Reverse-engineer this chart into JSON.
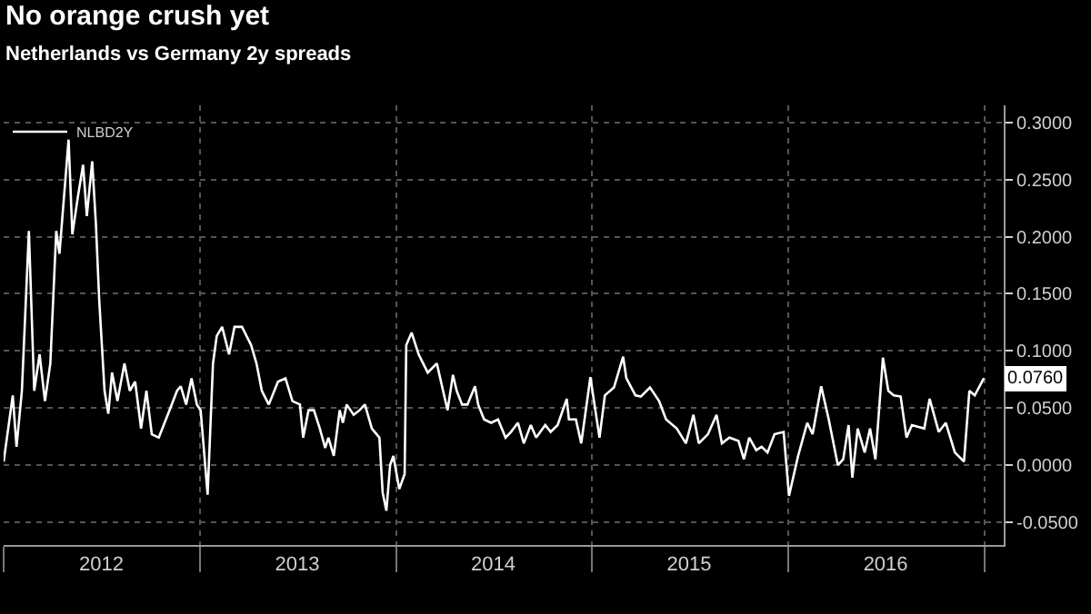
{
  "chart_data": {
    "type": "line",
    "title": "No orange crush yet",
    "subtitle": "Netherlands vs Germany 2y spreads",
    "x": [
      "2012-01-01",
      "2012-01-18",
      "2012-01-25",
      "2012-02-04",
      "2012-02-17",
      "2012-02-27",
      "2012-03-08",
      "2012-03-18",
      "2012-03-28",
      "2012-04-08",
      "2012-04-14",
      "2012-05-01",
      "2012-05-08",
      "2012-05-18",
      "2012-05-28",
      "2012-06-04",
      "2012-06-14",
      "2012-06-21",
      "2012-06-27",
      "2012-07-07",
      "2012-07-14",
      "2012-07-21",
      "2012-07-31",
      "2012-08-13",
      "2012-08-23",
      "2012-09-02",
      "2012-09-13",
      "2012-09-23",
      "2012-10-03",
      "2012-10-16",
      "2012-11-05",
      "2012-11-19",
      "2012-11-26",
      "2012-12-06",
      "2012-12-16",
      "2012-12-26",
      "2013-01-02",
      "2013-01-15",
      "2013-01-25",
      "2013-02-01",
      "2013-02-11",
      "2013-02-24",
      "2013-03-06",
      "2013-03-20",
      "2013-04-06",
      "2013-04-16",
      "2013-04-26",
      "2013-05-09",
      "2013-05-26",
      "2013-06-09",
      "2013-06-22",
      "2013-07-06",
      "2013-07-12",
      "2013-07-22",
      "2013-08-01",
      "2013-08-12",
      "2013-08-22",
      "2013-08-28",
      "2013-09-07",
      "2013-09-18",
      "2013-09-24",
      "2013-10-01",
      "2013-10-14",
      "2013-10-25",
      "2013-11-04",
      "2013-11-17",
      "2013-12-01",
      "2013-12-07",
      "2013-12-14",
      "2013-12-21",
      "2013-12-27",
      "2014-01-07",
      "2014-01-17",
      "2014-01-20",
      "2014-01-30",
      "2014-02-12",
      "2014-03-01",
      "2014-03-18",
      "2014-04-01",
      "2014-04-07",
      "2014-04-17",
      "2014-04-24",
      "2014-05-04",
      "2014-05-14",
      "2014-05-28",
      "2014-06-03",
      "2014-06-14",
      "2014-06-27",
      "2014-07-10",
      "2014-07-24",
      "2014-08-03",
      "2014-08-16",
      "2014-08-27",
      "2014-09-09",
      "2014-09-19",
      "2014-10-06",
      "2014-10-16",
      "2014-10-29",
      "2014-11-15",
      "2014-11-19",
      "2014-12-02",
      "2014-12-12",
      "2014-12-29",
      "2015-01-15",
      "2015-01-25",
      "2015-02-11",
      "2015-02-28",
      "2015-03-06",
      "2015-03-23",
      "2015-04-02",
      "2015-04-19",
      "2015-05-06",
      "2015-05-19",
      "2015-06-08",
      "2015-06-25",
      "2015-07-09",
      "2015-07-19",
      "2015-08-05",
      "2015-08-21",
      "2015-08-31",
      "2015-09-14",
      "2015-10-01",
      "2015-10-11",
      "2015-10-21",
      "2015-11-03",
      "2015-11-13",
      "2015-11-24",
      "2015-12-07",
      "2015-12-24",
      "2016-01-03",
      "2016-01-20",
      "2016-02-06",
      "2016-02-16",
      "2016-03-03",
      "2016-03-17",
      "2016-04-03",
      "2016-04-13",
      "2016-04-23",
      "2016-04-30",
      "2016-05-10",
      "2016-05-23",
      "2016-06-02",
      "2016-06-12",
      "2016-06-26",
      "2016-07-06",
      "2016-07-16",
      "2016-07-29",
      "2016-08-09",
      "2016-08-19",
      "2016-09-11",
      "2016-09-21",
      "2016-10-08",
      "2016-10-21",
      "2016-11-07",
      "2016-11-24",
      "2016-12-04",
      "2016-12-14",
      "2016-12-31"
    ],
    "series": [
      {
        "name": "NLBD2Y",
        "color": "#ffffff",
        "values": [
          0.003,
          0.061,
          0.016,
          0.065,
          0.205,
          0.065,
          0.097,
          0.056,
          0.089,
          0.205,
          0.185,
          0.285,
          0.202,
          0.234,
          0.263,
          0.218,
          0.266,
          0.21,
          0.145,
          0.065,
          0.045,
          0.081,
          0.056,
          0.089,
          0.065,
          0.073,
          0.032,
          0.065,
          0.027,
          0.024,
          0.048,
          0.065,
          0.069,
          0.053,
          0.076,
          0.053,
          0.048,
          -0.026,
          0.089,
          0.113,
          0.121,
          0.097,
          0.121,
          0.121,
          0.105,
          0.089,
          0.065,
          0.053,
          0.073,
          0.076,
          0.056,
          0.053,
          0.024,
          0.048,
          0.048,
          0.032,
          0.015,
          0.024,
          0.008,
          0.048,
          0.037,
          0.053,
          0.044,
          0.048,
          0.053,
          0.032,
          0.024,
          -0.024,
          -0.04,
          0.0,
          0.008,
          -0.021,
          -0.008,
          0.105,
          0.116,
          0.097,
          0.081,
          0.089,
          0.06,
          0.048,
          0.079,
          0.065,
          0.053,
          0.053,
          0.069,
          0.053,
          0.04,
          0.037,
          0.04,
          0.024,
          0.029,
          0.037,
          0.019,
          0.035,
          0.024,
          0.035,
          0.029,
          0.035,
          0.058,
          0.04,
          0.04,
          0.019,
          0.077,
          0.024,
          0.061,
          0.068,
          0.095,
          0.076,
          0.061,
          0.06,
          0.068,
          0.056,
          0.04,
          0.032,
          0.019,
          0.044,
          0.019,
          0.027,
          0.044,
          0.019,
          0.024,
          0.021,
          0.005,
          0.024,
          0.013,
          0.016,
          0.011,
          0.027,
          0.029,
          -0.027,
          0.008,
          0.037,
          0.027,
          0.069,
          0.04,
          0.0,
          0.005,
          0.035,
          -0.011,
          0.032,
          0.011,
          0.032,
          0.005,
          0.094,
          0.065,
          0.061,
          0.06,
          0.024,
          0.035,
          0.032,
          0.058,
          0.029,
          0.037,
          0.011,
          0.003,
          0.065,
          0.061,
          0.076
        ],
        "value_labels": [
          null,
          null,
          null,
          null,
          null,
          null,
          null,
          null,
          null,
          null,
          null,
          null,
          null,
          null,
          null,
          null,
          null,
          null,
          null,
          null,
          null,
          null,
          null,
          null,
          null,
          null,
          null,
          null,
          null,
          null,
          null,
          null,
          null,
          null,
          null,
          null,
          null,
          null,
          null,
          null,
          null,
          null,
          null,
          null,
          null,
          null,
          null,
          null,
          null,
          null,
          null,
          null,
          null,
          null,
          null,
          null,
          null,
          null,
          null,
          null,
          null,
          null,
          null,
          null,
          null,
          null,
          null,
          null,
          null,
          null,
          null,
          null,
          null,
          null,
          null,
          null,
          null,
          null,
          null,
          null,
          null,
          null,
          null,
          null,
          null,
          null,
          null,
          null,
          null,
          null,
          null,
          null,
          null,
          null,
          null,
          null,
          null,
          null,
          null,
          null,
          null,
          null,
          null,
          null,
          null,
          null,
          null,
          null,
          null,
          null,
          null,
          null,
          null,
          null,
          null,
          null,
          null,
          null,
          null,
          null,
          null,
          null,
          null,
          null,
          null,
          null,
          null,
          null,
          null,
          null,
          null,
          null,
          null,
          null,
          null,
          null,
          null,
          null,
          null,
          null,
          null,
          null,
          null,
          null,
          null,
          null,
          null,
          null,
          null,
          null,
          null,
          null,
          null,
          null,
          null,
          null,
          null,
          "0.0760"
        ]
      }
    ],
    "xlim": [
      "2012-01-01",
      "2017-02-06"
    ],
    "xticks": [
      {
        "value": "2012-01-01",
        "label": null
      },
      {
        "value": "2012-07-01",
        "label": "2012"
      },
      {
        "value": "2013-01-01",
        "label": null
      },
      {
        "value": "2013-07-01",
        "label": "2013"
      },
      {
        "value": "2014-01-01",
        "label": null
      },
      {
        "value": "2014-07-01",
        "label": "2014"
      },
      {
        "value": "2015-01-01",
        "label": null
      },
      {
        "value": "2015-07-01",
        "label": "2015"
      },
      {
        "value": "2016-01-01",
        "label": null
      },
      {
        "value": "2016-07-01",
        "label": "2016"
      },
      {
        "value": "2017-01-01",
        "label": null
      }
    ],
    "ylim": [
      -0.07,
      0.315
    ],
    "yticks": [
      {
        "value": -0.05,
        "label": "-0.0500"
      },
      {
        "value": 0,
        "label": "0.0000"
      },
      {
        "value": 0.05,
        "label": "0.0500"
      },
      {
        "value": 0.1,
        "label": "0.1000"
      },
      {
        "value": 0.15,
        "label": "0.1500"
      },
      {
        "value": 0.2,
        "label": "0.2000"
      },
      {
        "value": 0.25,
        "label": "0.2500"
      },
      {
        "value": 0.3,
        "label": "0.3000"
      }
    ],
    "grid": true,
    "legend": "top left",
    "marker": "none",
    "line_style": "solid"
  }
}
